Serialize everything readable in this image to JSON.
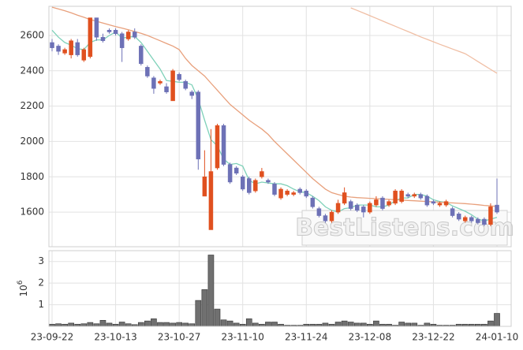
{
  "chart_data": {
    "type": "candlestick",
    "categories": [
      "23-09-22",
      null,
      null,
      null,
      null,
      null,
      null,
      null,
      null,
      null,
      "23-10-13",
      null,
      null,
      null,
      null,
      null,
      null,
      null,
      null,
      null,
      "23-10-27",
      null,
      null,
      null,
      null,
      null,
      null,
      null,
      null,
      null,
      "23-11-10",
      null,
      null,
      null,
      null,
      null,
      null,
      null,
      null,
      null,
      "23-11-24",
      null,
      null,
      null,
      null,
      null,
      null,
      null,
      null,
      null,
      "23-12-08",
      null,
      null,
      null,
      null,
      null,
      null,
      null,
      null,
      null,
      "23-12-22",
      null,
      null,
      null,
      null,
      null,
      null,
      null,
      null,
      null,
      "24-01-10"
    ],
    "open": [
      2560,
      2540,
      2500,
      2490,
      2560,
      2460,
      2480,
      2700,
      2590,
      2630,
      2630,
      2610,
      2580,
      2620,
      2540,
      2420,
      2360,
      2330,
      2310,
      2230,
      2380,
      2340,
      2280,
      2280,
      1690,
      1500,
      1850,
      2090,
      1870,
      1850,
      1800,
      1790,
      1720,
      1800,
      1780,
      1760,
      1680,
      1700,
      1700,
      1730,
      1720,
      1680,
      1620,
      1580,
      1550,
      1600,
      1650,
      1660,
      1640,
      1630,
      1600,
      1640,
      1680,
      1640,
      1650,
      1660,
      1700,
      1690,
      1700,
      1690,
      1660,
      1640,
      1640,
      1620,
      1590,
      1550,
      1570,
      1560,
      1560,
      1530,
      1640
    ],
    "high": [
      2580,
      2550,
      2530,
      2580,
      2580,
      2530,
      2700,
      2700,
      2610,
      2640,
      2640,
      2620,
      2630,
      2640,
      2550,
      2430,
      2370,
      2350,
      2330,
      2410,
      2390,
      2350,
      2290,
      2290,
      1950,
      2070,
      2100,
      2100,
      1880,
      1860,
      1810,
      1800,
      1790,
      1850,
      1790,
      1770,
      1740,
      1730,
      1720,
      1740,
      1730,
      1690,
      1630,
      1590,
      1610,
      1670,
      1740,
      1670,
      1650,
      1640,
      1660,
      1690,
      1690,
      1670,
      1730,
      1730,
      1710,
      1710,
      1710,
      1700,
      1670,
      1660,
      1670,
      1630,
      1600,
      1580,
      1580,
      1570,
      1570,
      1650,
      1790
    ],
    "low": [
      2510,
      2490,
      2490,
      2470,
      2480,
      2450,
      2470,
      2570,
      2560,
      2610,
      2600,
      2450,
      2570,
      2580,
      2430,
      2360,
      2270,
      2320,
      2270,
      2230,
      2340,
      2290,
      2240,
      1840,
      1690,
      1500,
      1840,
      1860,
      1760,
      1810,
      1720,
      1700,
      1710,
      1790,
      1760,
      1690,
      1670,
      1690,
      1690,
      1700,
      1680,
      1620,
      1570,
      1540,
      1540,
      1590,
      1640,
      1610,
      1600,
      1570,
      1590,
      1630,
      1610,
      1630,
      1640,
      1650,
      1680,
      1680,
      1670,
      1630,
      1640,
      1630,
      1630,
      1570,
      1550,
      1540,
      1540,
      1530,
      1520,
      1520,
      1590
    ],
    "close": [
      2530,
      2510,
      2520,
      2570,
      2490,
      2520,
      2700,
      2590,
      2570,
      2620,
      2610,
      2530,
      2620,
      2590,
      2440,
      2370,
      2300,
      2340,
      2280,
      2400,
      2350,
      2300,
      2260,
      1900,
      1800,
      1830,
      2090,
      1870,
      1770,
      1820,
      1730,
      1710,
      1780,
      1830,
      1770,
      1700,
      1730,
      1720,
      1710,
      1710,
      1690,
      1630,
      1580,
      1550,
      1600,
      1650,
      1710,
      1620,
      1610,
      1600,
      1650,
      1670,
      1620,
      1660,
      1720,
      1720,
      1690,
      1700,
      1680,
      1640,
      1650,
      1650,
      1660,
      1580,
      1560,
      1570,
      1550,
      1540,
      1530,
      1630,
      1600
    ],
    "up_color": "#e0501f",
    "down_color": "#6d71b6",
    "moving_averages": [
      {
        "color": "#7fd1b9",
        "values": [
          2630,
          2590,
          2560,
          2545,
          2525,
          2520,
          2560,
          2575,
          2575,
          2600,
          2620,
          2585,
          2590,
          2595,
          2560,
          2510,
          2460,
          2410,
          2345,
          2340,
          2335,
          2335,
          2320,
          2240,
          2120,
          2010,
          1975,
          1900,
          1870,
          1875,
          1860,
          1780,
          1760,
          1770,
          1765,
          1760,
          1760,
          1750,
          1730,
          1715,
          1710,
          1690,
          1665,
          1630,
          1610,
          1600,
          1620,
          1625,
          1640,
          1640,
          1640,
          1630,
          1630,
          1640,
          1665,
          1680,
          1680,
          1700,
          1700,
          1690,
          1670,
          1660,
          1655,
          1635,
          1620,
          1605,
          1585,
          1560,
          1550,
          1560,
          1570
        ]
      },
      {
        "color": "#e8a07c",
        "values": [
          2760,
          2750,
          2740,
          2728,
          2715,
          2703,
          2690,
          2680,
          2670,
          2660,
          2650,
          2642,
          2632,
          2622,
          2612,
          2600,
          2585,
          2570,
          2555,
          2540,
          2520,
          2470,
          2430,
          2400,
          2370,
          2330,
          2290,
          2250,
          2210,
          2180,
          2150,
          2120,
          2095,
          2070,
          2040,
          2000,
          1965,
          1930,
          1895,
          1860,
          1825,
          1790,
          1760,
          1730,
          1710,
          1700,
          1690,
          1685,
          1682,
          1680,
          1678,
          1676,
          1674,
          1672,
          1670,
          1668,
          1666,
          1664,
          1662,
          1660,
          1658,
          1656,
          1654,
          1652,
          1650,
          1648,
          1645,
          1642,
          1638,
          1635,
          1632
        ]
      },
      {
        "color": "#f0bfa5",
        "values": [
          null,
          null,
          null,
          null,
          null,
          null,
          null,
          null,
          null,
          null,
          null,
          null,
          null,
          null,
          null,
          null,
          null,
          null,
          null,
          null,
          null,
          null,
          null,
          null,
          null,
          null,
          null,
          null,
          null,
          null,
          null,
          null,
          null,
          null,
          null,
          null,
          null,
          null,
          null,
          null,
          null,
          null,
          null,
          null,
          null,
          null,
          null,
          2756,
          2742,
          2727,
          2712,
          2697,
          2682,
          2667,
          2652,
          2637,
          2622,
          2607,
          2592,
          2578,
          2564,
          2550,
          2537,
          2523,
          2510,
          2497,
          2475,
          2452,
          2430,
          2408,
          2386
        ]
      }
    ],
    "ylim": [
      1404,
      2765
    ],
    "yticks": [
      1600,
      1800,
      2000,
      2200,
      2400,
      2600
    ],
    "grid": true,
    "watermark": "BestListens.com",
    "volume": {
      "type": "bar",
      "color": "#707070",
      "label_base": "10",
      "label_exponent": "6",
      "ylim": [
        0,
        3.5
      ],
      "yticks": [
        1,
        2,
        3
      ],
      "values": [
        0.1,
        0.12,
        0.1,
        0.15,
        0.1,
        0.12,
        0.18,
        0.12,
        0.28,
        0.15,
        0.1,
        0.2,
        0.12,
        0.08,
        0.18,
        0.25,
        0.35,
        0.18,
        0.18,
        0.15,
        0.18,
        0.15,
        0.12,
        1.2,
        1.7,
        3.3,
        0.8,
        0.3,
        0.25,
        0.15,
        0.1,
        0.35,
        0.15,
        0.1,
        0.2,
        0.2,
        0.1,
        0.05,
        0.05,
        0.05,
        0.1,
        0.1,
        0.1,
        0.15,
        0.1,
        0.2,
        0.25,
        0.2,
        0.15,
        0.15,
        0.1,
        0.25,
        0.1,
        0.1,
        0.05,
        0.2,
        0.15,
        0.15,
        0.05,
        0.15,
        0.1,
        0.05,
        0.05,
        0.05,
        0.1,
        0.1,
        0.1,
        0.1,
        0.1,
        0.25,
        0.6
      ]
    }
  }
}
